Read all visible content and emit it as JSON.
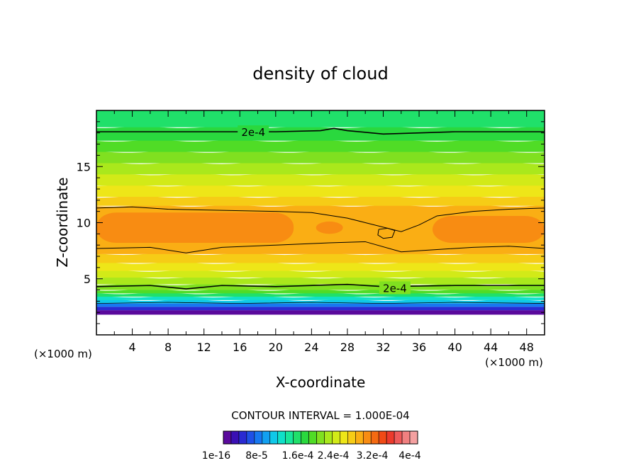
{
  "chart_data": {
    "type": "heatmap",
    "title": "density of cloud",
    "xlabel": "X-coordinate",
    "ylabel": "Z-coordinate",
    "x_unit": "(×1000 m)",
    "y_unit": "(×1000 m)",
    "xlim": [
      0,
      50
    ],
    "ylim": [
      0,
      20
    ],
    "x_ticks": [
      4,
      8,
      12,
      16,
      20,
      24,
      28,
      32,
      36,
      40,
      44,
      48
    ],
    "y_ticks": [
      5,
      10,
      15
    ],
    "contour_interval_text": "CONTOUR INTERVAL = 1.000E-04",
    "contour_labels": [
      {
        "text": "2e-4",
        "x": 17.5,
        "y": 18.1
      },
      {
        "text": "2e-4",
        "x": 33.3,
        "y": 4.2
      }
    ],
    "colorbar": {
      "colors": [
        "#5a0a9c",
        "#3a10b4",
        "#2a2ad2",
        "#1f50e6",
        "#1778f0",
        "#12a0f0",
        "#10c8e8",
        "#10e0c8",
        "#18e69a",
        "#20e06a",
        "#2ad83e",
        "#50dc26",
        "#80e020",
        "#aae81c",
        "#d2ea18",
        "#eee618",
        "#f6cc16",
        "#faae14",
        "#f88c12",
        "#f46a12",
        "#f04a16",
        "#ec3a2c",
        "#ee5a5a",
        "#f08080",
        "#f4a0a0"
      ],
      "tick_labels": [
        "1e-16",
        "8e-5",
        "1.6e-4",
        "2.4e-4",
        "3.2e-4",
        "4e-4"
      ]
    },
    "bands": [
      {
        "z_top": 1.8,
        "color": "#ffffff"
      },
      {
        "z_top": 2.2,
        "color": "#5a0a9c"
      },
      {
        "z_top": 2.5,
        "color": "#2a2ad2"
      },
      {
        "z_top": 2.8,
        "color": "#1778f0"
      },
      {
        "z_top": 3.1,
        "color": "#10c8e8"
      },
      {
        "z_top": 3.4,
        "color": "#10e0c8"
      },
      {
        "z_top": 3.7,
        "color": "#20e06a"
      },
      {
        "z_top": 4.0,
        "color": "#50dc26"
      },
      {
        "z_top": 4.5,
        "color": "#80e020"
      },
      {
        "z_top": 5.1,
        "color": "#aae81c"
      },
      {
        "z_top": 5.7,
        "color": "#d2ea18"
      },
      {
        "z_top": 6.4,
        "color": "#eee618"
      },
      {
        "z_top": 7.2,
        "color": "#f6cc16"
      },
      {
        "z_top": 11.5,
        "color": "#faae14"
      },
      {
        "z_top": 12.3,
        "color": "#f6cc16"
      },
      {
        "z_top": 13.3,
        "color": "#eee618"
      },
      {
        "z_top": 14.3,
        "color": "#d2ea18"
      },
      {
        "z_top": 15.3,
        "color": "#aae81c"
      },
      {
        "z_top": 16.3,
        "color": "#80e020"
      },
      {
        "z_top": 17.3,
        "color": "#50dc26"
      },
      {
        "z_top": 18.5,
        "color": "#2ad83e"
      },
      {
        "z_top": 20.0,
        "color": "#20e06a"
      }
    ],
    "max_regions": [
      {
        "x0": 0,
        "x1": 22,
        "z0": 8.2,
        "z1": 10.9,
        "color": "#f88c12"
      },
      {
        "x0": 24.5,
        "x1": 27.5,
        "z0": 9.0,
        "z1": 10.1,
        "color": "#f88c12"
      },
      {
        "x0": 37.5,
        "x1": 50,
        "z0": 8.2,
        "z1": 10.6,
        "color": "#f88c12"
      }
    ],
    "contour_lines": [
      {
        "points": [
          [
            0,
            18.1
          ],
          [
            10,
            18.1
          ],
          [
            20,
            18.1
          ],
          [
            25,
            18.2
          ],
          [
            26.5,
            18.4
          ],
          [
            28,
            18.2
          ],
          [
            32,
            17.9
          ],
          [
            40,
            18.1
          ],
          [
            50,
            18.1
          ]
        ],
        "width": 1.6
      },
      {
        "points": [
          [
            0,
            4.3
          ],
          [
            6,
            4.4
          ],
          [
            10,
            4.1
          ],
          [
            14,
            4.4
          ],
          [
            20,
            4.3
          ],
          [
            28,
            4.5
          ],
          [
            32,
            4.3
          ],
          [
            40,
            4.4
          ],
          [
            50,
            4.4
          ]
        ],
        "width": 1.6
      },
      {
        "points": [
          [
            0,
            11.3
          ],
          [
            4,
            11.4
          ],
          [
            8,
            11.2
          ],
          [
            14,
            11.1
          ],
          [
            20,
            11.0
          ],
          [
            24,
            10.9
          ],
          [
            28,
            10.4
          ],
          [
            30,
            10.0
          ],
          [
            34,
            9.2
          ],
          [
            36,
            9.8
          ],
          [
            38,
            10.6
          ],
          [
            42,
            11.0
          ],
          [
            46,
            11.2
          ],
          [
            50,
            11.3
          ]
        ],
        "width": 1.0
      },
      {
        "points": [
          [
            0,
            7.7
          ],
          [
            6,
            7.8
          ],
          [
            10,
            7.3
          ],
          [
            14,
            7.8
          ],
          [
            20,
            8.0
          ],
          [
            26,
            8.2
          ],
          [
            30,
            8.3
          ],
          [
            34,
            7.4
          ],
          [
            38,
            7.6
          ],
          [
            42,
            7.8
          ],
          [
            46,
            7.9
          ],
          [
            50,
            7.7
          ]
        ],
        "width": 1.0
      },
      {
        "points": [
          [
            31.5,
            9.4
          ],
          [
            32.5,
            9.5
          ],
          [
            33.3,
            9.3
          ],
          [
            33,
            8.7
          ],
          [
            32,
            8.6
          ],
          [
            31.4,
            8.9
          ],
          [
            31.5,
            9.4
          ]
        ],
        "width": 1.0
      },
      {
        "points": [
          [
            0,
            2.8
          ],
          [
            8,
            2.9
          ],
          [
            16,
            2.8
          ],
          [
            24,
            2.9
          ],
          [
            32,
            2.8
          ],
          [
            40,
            2.9
          ],
          [
            50,
            2.8
          ]
        ],
        "width": 0.8
      }
    ]
  }
}
